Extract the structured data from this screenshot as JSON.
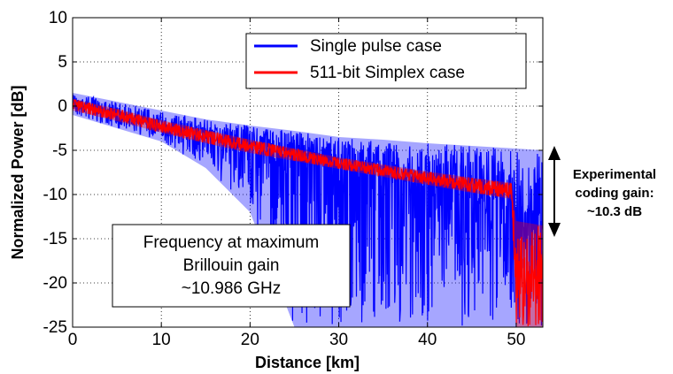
{
  "chart_data": {
    "type": "line",
    "title": "",
    "xlabel": "Distance [km]",
    "ylabel": "Normalized Power [dB]",
    "xlim": [
      0,
      53
    ],
    "ylim": [
      -25,
      10
    ],
    "xticks": [
      0,
      10,
      20,
      30,
      40,
      50
    ],
    "yticks": [
      -25,
      -20,
      -15,
      -10,
      -5,
      0,
      5,
      10
    ],
    "xtick_labels": [
      "0",
      "10",
      "20",
      "30",
      "40",
      "50"
    ],
    "ytick_labels": [
      "-25",
      "-20",
      "-15",
      "-10",
      "-5",
      "0",
      "5",
      "10"
    ],
    "grid": "dotted",
    "legend_position": "top-right",
    "series": [
      {
        "name": "Single pulse case",
        "color": "#0000ff",
        "x": [
          0,
          5,
          10,
          15,
          20,
          25,
          30,
          35,
          40,
          45,
          50,
          53
        ],
        "upper": [
          1.5,
          0.5,
          -0.5,
          -1.5,
          -2.2,
          -2.8,
          -3.5,
          -3.8,
          -4.2,
          -4.5,
          -4.8,
          -5.0
        ],
        "lower": [
          -1.0,
          -2.5,
          -4.0,
          -7.0,
          -12.0,
          -25.0,
          -25.0,
          -25.0,
          -25.0,
          -25.0,
          -25.0,
          -25.0
        ],
        "mean": [
          0.5,
          -0.8,
          -2.0,
          -3.2,
          -4.3,
          -5.3,
          -6.5,
          -7.8,
          -9.0,
          -10.2,
          -11.4,
          -12.0
        ]
      },
      {
        "name": "511-bit Simplex case",
        "color": "#ff0000",
        "x": [
          0,
          5,
          10,
          15,
          20,
          25,
          30,
          35,
          40,
          45,
          49.5,
          50,
          53
        ],
        "upper": [
          0.8,
          -0.3,
          -1.6,
          -2.7,
          -3.8,
          -4.8,
          -5.8,
          -6.6,
          -7.4,
          -8.1,
          -8.7,
          -13.0,
          -13.5
        ],
        "lower": [
          -0.5,
          -1.7,
          -3.0,
          -4.2,
          -5.3,
          -6.2,
          -7.1,
          -8.0,
          -8.9,
          -9.8,
          -10.5,
          -25.0,
          -25.0
        ],
        "mean": [
          0.2,
          -1.0,
          -2.3,
          -3.5,
          -4.6,
          -5.5,
          -6.5,
          -7.3,
          -8.1,
          -8.9,
          -9.6,
          -19.0,
          -19.0
        ]
      }
    ],
    "annotations": [
      {
        "id": "frequency-box",
        "lines": [
          "Frequency at maximum",
          "Brillouin gain",
          "~10.986 GHz"
        ]
      },
      {
        "id": "coding-gain",
        "lines": [
          "Experimental",
          "coding gain:",
          "~10.3 dB"
        ]
      }
    ]
  }
}
